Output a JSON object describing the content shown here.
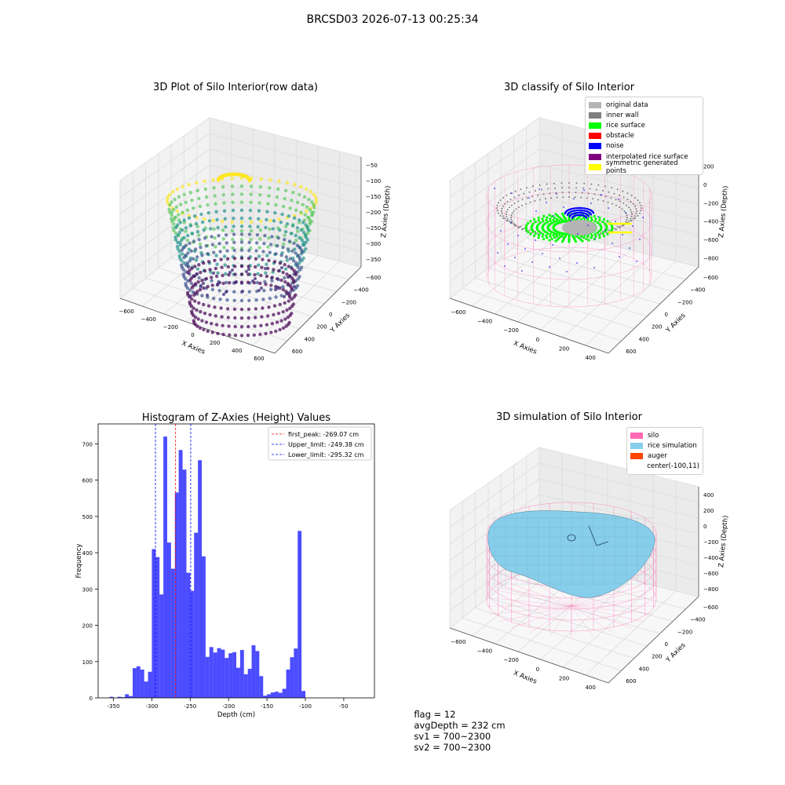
{
  "figure": {
    "suptitle": "BRCSD03 2026-07-13 00:25:34"
  },
  "panels": {
    "raw": {
      "title": "3D Plot of Silo Interior(row data)",
      "xlabel": "X Axies",
      "ylabel": "Y Axies",
      "zlabel": "Z Axies (Depth)",
      "x_ticks": [
        "−600",
        "−400",
        "−200",
        "0",
        "200",
        "400",
        "600"
      ],
      "y_ticks": [
        "600",
        "400",
        "200",
        "0",
        "−200",
        "−400",
        "−600"
      ],
      "z_ticks": [
        "−50",
        "−100",
        "−150",
        "−200",
        "−250",
        "−300",
        "−350"
      ]
    },
    "classify": {
      "title": "3D classify of Silo Interior",
      "xlabel": "X Axies",
      "ylabel": "Y Axies",
      "zlabel": "Z Axies (Depth)",
      "x_ticks": [
        "−600",
        "−400",
        "−200",
        "0",
        "200",
        "400"
      ],
      "y_ticks": [
        "600",
        "400",
        "200",
        "0",
        "−200",
        "−400",
        "−600"
      ],
      "z_ticks": [
        "200",
        "0",
        "−200",
        "−400",
        "−600",
        "−800"
      ],
      "legend": [
        {
          "label": "original data",
          "color": "#b4b4b4"
        },
        {
          "label": "inner wall",
          "color": "#7f7f7f"
        },
        {
          "label": "rice surface",
          "color": "#00ff00"
        },
        {
          "label": "obstacle",
          "color": "#ff0000"
        },
        {
          "label": "noise",
          "color": "#0000ff"
        },
        {
          "label": "interpolated rice surface",
          "color": "#800080"
        },
        {
          "label": "symmetric generated points",
          "color": "#ffff00"
        }
      ]
    },
    "simulation": {
      "title": "3D simulation of Silo Interior",
      "xlabel": "X Axies",
      "ylabel": "Y Axies",
      "zlabel": "Z Axies (Depth)",
      "x_ticks": [
        "−600",
        "−400",
        "−200",
        "0",
        "200",
        "400"
      ],
      "y_ticks": [
        "600",
        "400",
        "200",
        "0",
        "−200",
        "−400",
        "−600"
      ],
      "z_ticks": [
        "400",
        "200",
        "0",
        "−200",
        "−400",
        "−600",
        "−800"
      ],
      "legend": [
        {
          "label": "silo",
          "color": "#ff69b4"
        },
        {
          "label": "rice simulation",
          "color": "#87ceeb"
        },
        {
          "label": "auger",
          "color": "#ff4500"
        },
        {
          "label": "center(-100,11)",
          "color": ""
        }
      ]
    }
  },
  "status": {
    "flag": "flag = 12",
    "avg_depth": "avgDepth = 232 cm",
    "sv1": "sv1 = 700~2300",
    "sv2": "sv2 = 700~2300"
  },
  "chart_data": [
    {
      "type": "bar",
      "title": "Histogram of Z-Axies (Height) Values",
      "xlabel": "Depth (cm)",
      "ylabel": "Frequency",
      "bar_color": "#0000ff",
      "bin_width": 5,
      "xlim": [
        -370,
        -10
      ],
      "ylim": [
        0,
        755
      ],
      "x_ticks": [
        -350,
        -300,
        -250,
        -200,
        -150,
        -100,
        -50
      ],
      "y_ticks": [
        0,
        100,
        200,
        300,
        400,
        500,
        600,
        700
      ],
      "bins": [
        {
          "x": -355,
          "y": 3
        },
        {
          "x": -350,
          "y": 0
        },
        {
          "x": -345,
          "y": 3
        },
        {
          "x": -340,
          "y": 2
        },
        {
          "x": -335,
          "y": 10
        },
        {
          "x": -330,
          "y": 5
        },
        {
          "x": -325,
          "y": 82
        },
        {
          "x": -320,
          "y": 87
        },
        {
          "x": -315,
          "y": 78
        },
        {
          "x": -310,
          "y": 45
        },
        {
          "x": -305,
          "y": 72
        },
        {
          "x": -300,
          "y": 410
        },
        {
          "x": -295,
          "y": 388
        },
        {
          "x": -290,
          "y": 285
        },
        {
          "x": -285,
          "y": 720
        },
        {
          "x": -280,
          "y": 428
        },
        {
          "x": -275,
          "y": 356
        },
        {
          "x": -270,
          "y": 566
        },
        {
          "x": -265,
          "y": 683
        },
        {
          "x": -260,
          "y": 629
        },
        {
          "x": -255,
          "y": 345
        },
        {
          "x": -250,
          "y": 295
        },
        {
          "x": -245,
          "y": 455
        },
        {
          "x": -240,
          "y": 655
        },
        {
          "x": -235,
          "y": 390
        },
        {
          "x": -230,
          "y": 113
        },
        {
          "x": -225,
          "y": 140
        },
        {
          "x": -220,
          "y": 125
        },
        {
          "x": -215,
          "y": 137
        },
        {
          "x": -210,
          "y": 133
        },
        {
          "x": -205,
          "y": 110
        },
        {
          "x": -200,
          "y": 123
        },
        {
          "x": -195,
          "y": 126
        },
        {
          "x": -190,
          "y": 83
        },
        {
          "x": -185,
          "y": 132
        },
        {
          "x": -180,
          "y": 65
        },
        {
          "x": -175,
          "y": 80
        },
        {
          "x": -170,
          "y": 145
        },
        {
          "x": -165,
          "y": 129
        },
        {
          "x": -160,
          "y": 60
        },
        {
          "x": -155,
          "y": 6
        },
        {
          "x": -150,
          "y": 10
        },
        {
          "x": -145,
          "y": 15
        },
        {
          "x": -140,
          "y": 17
        },
        {
          "x": -135,
          "y": 14
        },
        {
          "x": -130,
          "y": 25
        },
        {
          "x": -125,
          "y": 78
        },
        {
          "x": -120,
          "y": 112
        },
        {
          "x": -115,
          "y": 136
        },
        {
          "x": -110,
          "y": 460
        },
        {
          "x": -105,
          "y": 19
        }
      ],
      "vlines": [
        {
          "x": -269.07,
          "color": "#ff0000",
          "label": "first_peak: -269.07 cm"
        },
        {
          "x": -249.38,
          "color": "#0000ff",
          "label": "Upper_limit: -249.38 cm"
        },
        {
          "x": -295.32,
          "color": "#0000ff",
          "label": "Lower_limit: -295.32 cm"
        }
      ],
      "legend_position": "top-right"
    }
  ]
}
